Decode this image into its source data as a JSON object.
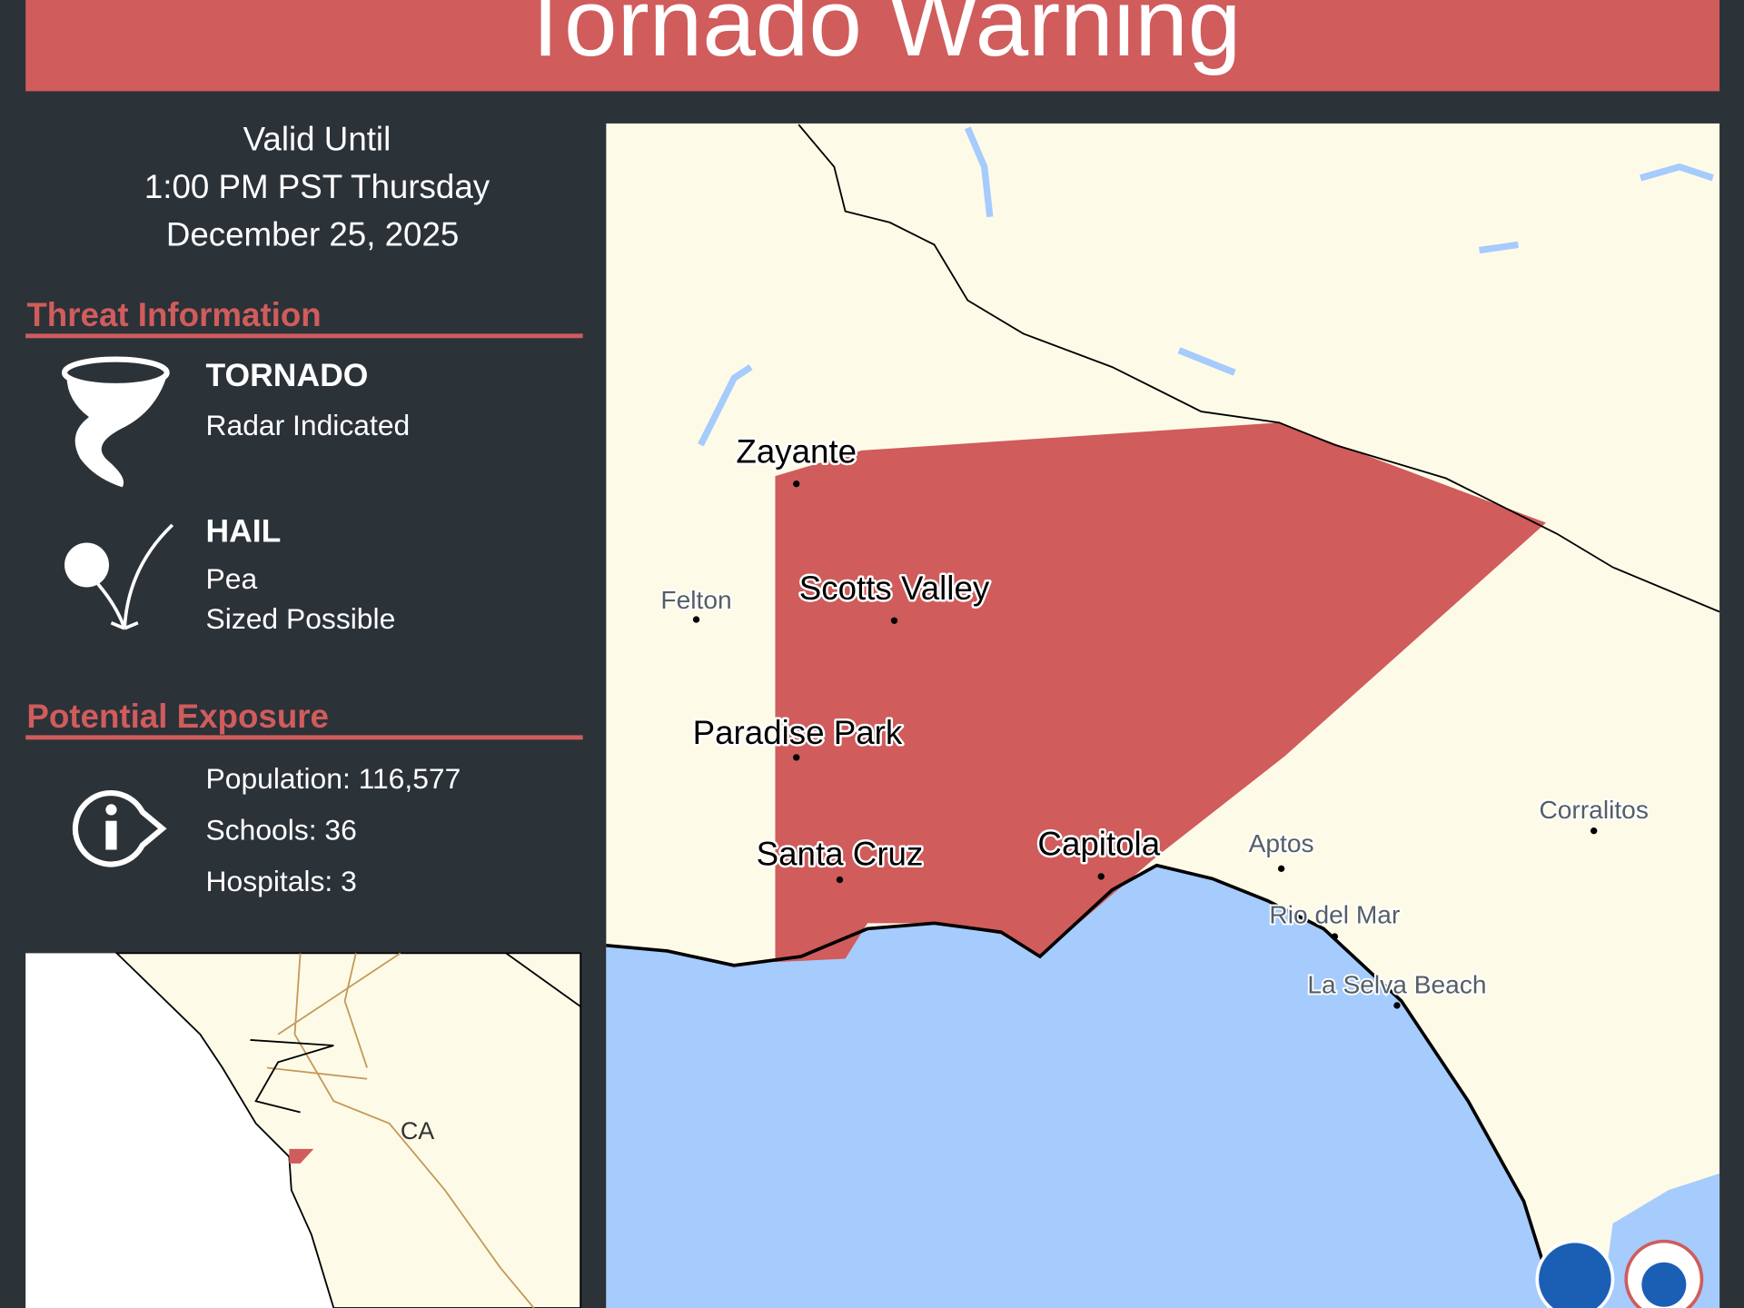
{
  "header": {
    "title": "Tornado Warning"
  },
  "valid": {
    "label": "Valid Until",
    "time": "1:00 PM PST Thursday",
    "date": "December 25, 2025"
  },
  "threat": {
    "heading": "Threat Information",
    "items": [
      {
        "name": "TORNADO",
        "lines": [
          "Radar Indicated"
        ]
      },
      {
        "name": "HAIL",
        "lines": [
          "Pea",
          "Sized Possible"
        ]
      }
    ]
  },
  "exposure": {
    "heading": "Potential Exposure",
    "items": [
      "Population: 116,577",
      "Schools: 36",
      "Hospitals: 3"
    ]
  },
  "inset": {
    "label": "CA"
  },
  "map": {
    "cities": [
      "Zayante",
      "Scotts Valley",
      "Paradise Park",
      "Santa Cruz",
      "Capitola"
    ],
    "towns": [
      "Felton",
      "Aptos",
      "Corralitos",
      "Rio del Mar",
      "La Selva Beach"
    ]
  }
}
